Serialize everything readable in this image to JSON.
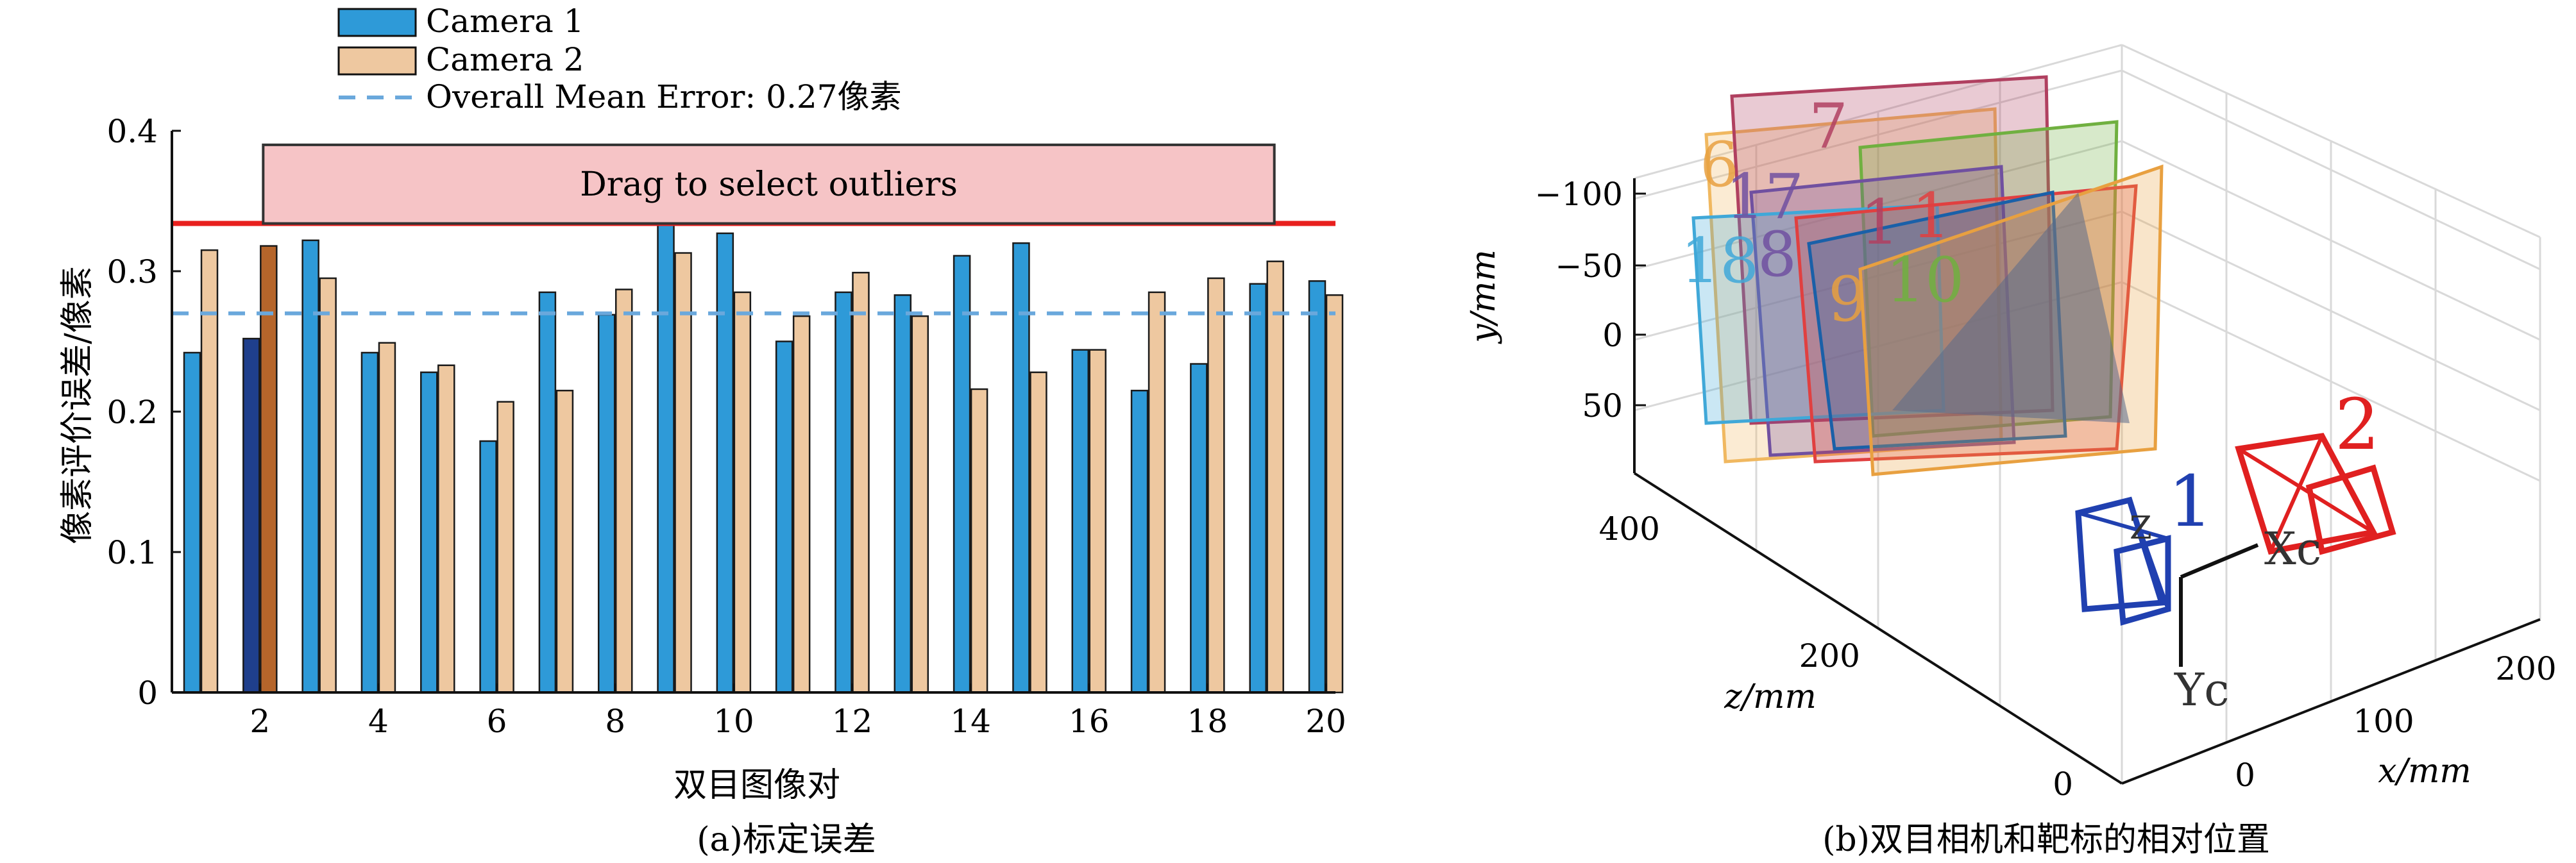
{
  "chart_data": [
    {
      "type": "bar",
      "panel_caption": "(a)标定误差",
      "xlabel": "双目图像对",
      "ylabel": "像素评价误差/像素",
      "ylim": [
        0,
        0.4
      ],
      "yticks": [
        0,
        0.1,
        0.2,
        0.3,
        0.4
      ],
      "xticks": [
        2,
        4,
        6,
        8,
        10,
        12,
        14,
        16,
        18,
        20
      ],
      "categories": [
        1,
        2,
        3,
        4,
        5,
        6,
        7,
        8,
        9,
        10,
        11,
        12,
        13,
        14,
        15,
        16,
        17,
        18,
        19,
        20
      ],
      "series": [
        {
          "name": "Camera 1",
          "color": "#2e9ad8",
          "values": [
            0.242,
            0.252,
            0.322,
            0.242,
            0.228,
            0.179,
            0.285,
            0.269,
            0.338,
            0.327,
            0.25,
            0.285,
            0.283,
            0.311,
            0.32,
            0.244,
            0.215,
            0.234,
            0.291,
            0.293
          ]
        },
        {
          "name": "Camera 2",
          "color": "#eec8a0",
          "values": [
            0.315,
            0.318,
            0.295,
            0.249,
            0.233,
            0.207,
            0.215,
            0.287,
            0.313,
            0.285,
            0.268,
            0.299,
            0.268,
            0.216,
            0.228,
            0.244,
            0.285,
            0.295,
            0.307,
            0.283
          ]
        }
      ],
      "highlighted_pair": 2,
      "highlight_colors": {
        "camera1": "#1f3f8c",
        "camera2": "#b5652b"
      },
      "mean_line": {
        "label": "Overall Mean Error: 0.27像素",
        "value": 0.27,
        "color": "#6aa8dc",
        "style": "dashed"
      },
      "outlier_threshold": {
        "value": 0.334,
        "color": "#e8201e"
      },
      "outlier_box": {
        "label": "Drag to select outliers",
        "fill": "#f6c4c6"
      },
      "legend": "top-left, above plot"
    },
    {
      "type": "3d-scene",
      "panel_caption": "(b)双目相机和靶标的相对位置",
      "xlabel": "x/mm",
      "ylabel": "y/mm",
      "zlabel": "z/mm",
      "x_ticks": [
        "0",
        "100",
        "200"
      ],
      "y_ticks": [
        "−100",
        "−50",
        "0",
        "50"
      ],
      "z_ticks": [
        "0",
        "200",
        "400"
      ],
      "camera_labels": [
        "1",
        "2"
      ],
      "camera_colors": {
        "1": "#2040b0",
        "2": "#e02020"
      },
      "axis_labels": [
        "Xc",
        "Yc",
        "Z"
      ],
      "target_labels": [
        "6",
        "7",
        "17",
        "18",
        "8",
        "9",
        "10",
        "1",
        "1"
      ]
    }
  ]
}
